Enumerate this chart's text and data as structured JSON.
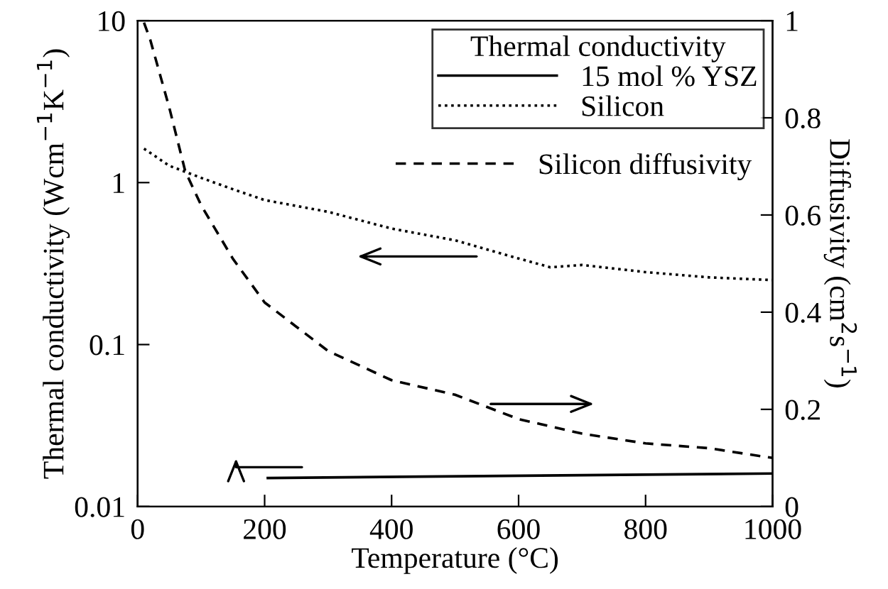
{
  "chart_data": {
    "type": "line",
    "xlabel": "Temperature (°C)",
    "ylabel": "Thermal conductivity (Wcm$^{−1}$K$^{−1}$)",
    "y2label": "Diffusivity (cm$^{2}$s$^{−1}$)",
    "legend_title": "Thermal conductivity",
    "legend": "top right",
    "log": "y",
    "grid": false,
    "xlim": [
      0,
      1000
    ],
    "xticks": [
      0,
      200,
      400,
      600,
      800,
      1000
    ],
    "ylim": [
      0.01,
      10
    ],
    "yticks": [
      0.01,
      0.1,
      1,
      10
    ],
    "y2lim": [
      0,
      1
    ],
    "y2ticks": [
      0,
      0.2,
      0.4,
      0.6,
      0.8,
      1
    ],
    "series": [
      {
        "name": "15 mol % YSZ",
        "color": "#000000",
        "line_style": "solid",
        "x": [
          205,
          1000
        ],
        "values": [
          0.015,
          0.016
        ]
      },
      {
        "name": "Silicon",
        "color": "#000000",
        "line_style": "dotted",
        "x": [
          10,
          50,
          100,
          150,
          200,
          300,
          400,
          500,
          600,
          650,
          700,
          800,
          900,
          1000
        ],
        "values": [
          1.62,
          1.27,
          1.07,
          0.91,
          0.78,
          0.66,
          0.52,
          0.44,
          0.34,
          0.3,
          0.31,
          0.28,
          0.26,
          0.25
        ]
      },
      {
        "name": "Silicon diffusivity",
        "color": "#000000",
        "line_style": "dashed",
        "axis": "y2",
        "x": [
          10,
          20,
          50,
          75,
          100,
          150,
          200,
          250,
          300,
          400,
          500,
          600,
          700,
          800,
          900,
          1000
        ],
        "values": [
          0.996,
          0.96,
          0.82,
          0.69,
          0.62,
          0.51,
          0.42,
          0.37,
          0.32,
          0.26,
          0.23,
          0.18,
          0.15,
          0.13,
          0.12,
          0.1
        ]
      }
    ]
  }
}
